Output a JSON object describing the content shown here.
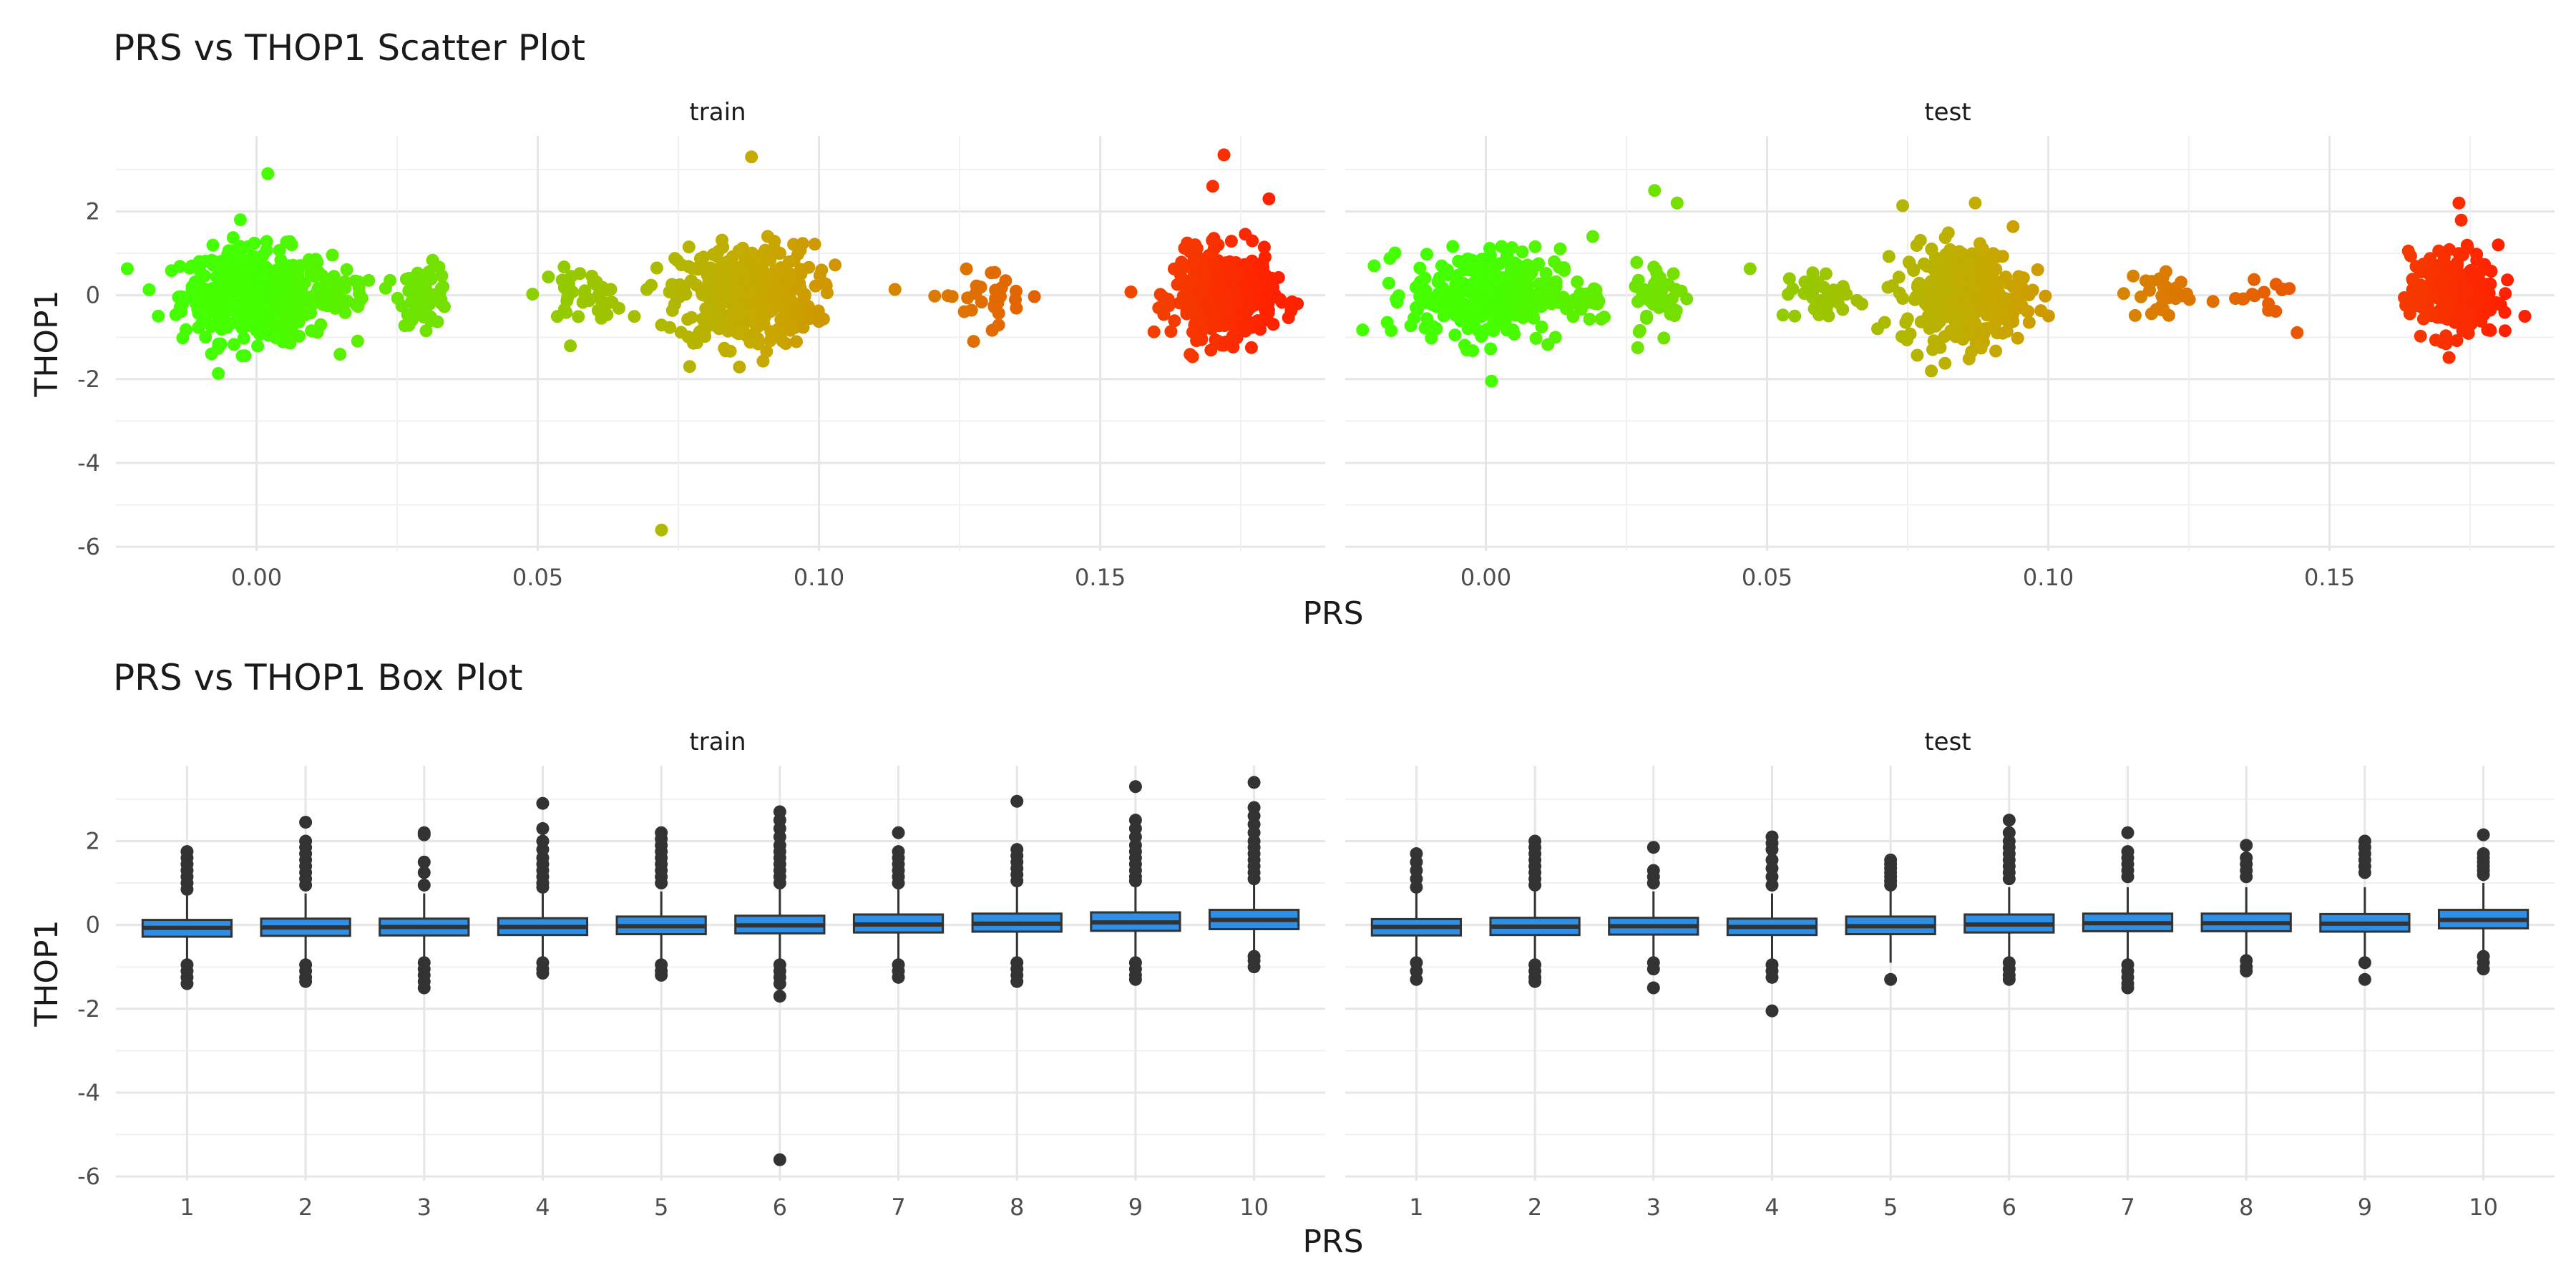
{
  "chart_data": [
    {
      "type": "scatter",
      "title": "PRS vs THOP1 Scatter Plot",
      "xlabel": "PRS",
      "ylabel": "THOP1",
      "facets": [
        "train",
        "test"
      ],
      "xlim": [
        -0.025,
        0.19
      ],
      "ylim": [
        -6.1,
        3.8
      ],
      "x_ticks": [
        0.0,
        0.05,
        0.1,
        0.15
      ],
      "x_tick_labels": [
        "0.00",
        "0.05",
        "0.10",
        "0.15"
      ],
      "y_ticks": [
        -6,
        -4,
        -2,
        0,
        2
      ],
      "y_tick_labels": [
        "-6",
        "-4",
        "-2",
        "0",
        "2"
      ],
      "grid": true,
      "color_scale": {
        "low": "#44ff00",
        "mid": "#c8a800",
        "high": "#ff2200",
        "domain": [
          0.0,
          0.18
        ]
      },
      "clusters": {
        "train": [
          {
            "x_center": 0.0,
            "x_spread": 0.012,
            "y_spread": 0.55,
            "n": 420
          },
          {
            "x_center": 0.015,
            "x_spread": 0.006,
            "y_spread": 0.25,
            "n": 40
          },
          {
            "x_center": 0.03,
            "x_spread": 0.004,
            "y_spread": 0.35,
            "n": 60
          },
          {
            "x_center": 0.058,
            "x_spread": 0.007,
            "y_spread": 0.3,
            "n": 40
          },
          {
            "x_center": 0.087,
            "x_spread": 0.011,
            "y_spread": 0.6,
            "n": 420
          },
          {
            "x_center": 0.13,
            "x_spread": 0.01,
            "y_spread": 0.35,
            "n": 30
          },
          {
            "x_center": 0.172,
            "x_spread": 0.008,
            "y_spread": 0.5,
            "n": 400
          }
        ],
        "test": [
          {
            "x_center": 0.0,
            "x_spread": 0.012,
            "y_spread": 0.55,
            "n": 300
          },
          {
            "x_center": 0.018,
            "x_spread": 0.004,
            "y_spread": 0.3,
            "n": 20
          },
          {
            "x_center": 0.031,
            "x_spread": 0.004,
            "y_spread": 0.4,
            "n": 50
          },
          {
            "x_center": 0.06,
            "x_spread": 0.007,
            "y_spread": 0.3,
            "n": 40
          },
          {
            "x_center": 0.085,
            "x_spread": 0.01,
            "y_spread": 0.6,
            "n": 320
          },
          {
            "x_center": 0.12,
            "x_spread": 0.006,
            "y_spread": 0.35,
            "n": 30
          },
          {
            "x_center": 0.138,
            "x_spread": 0.005,
            "y_spread": 0.35,
            "n": 15
          },
          {
            "x_center": 0.172,
            "x_spread": 0.007,
            "y_spread": 0.5,
            "n": 260
          }
        ]
      },
      "notable_points": {
        "train": [
          {
            "x": 0.002,
            "y": 2.9
          },
          {
            "x": 0.072,
            "y": -5.6
          },
          {
            "x": 0.088,
            "y": 3.3
          },
          {
            "x": 0.172,
            "y": 3.35
          },
          {
            "x": 0.18,
            "y": 2.3
          },
          {
            "x": 0.17,
            "y": 2.6
          },
          {
            "x": 0.077,
            "y": -1.7
          },
          {
            "x": -0.008,
            "y": -1.4
          }
        ],
        "test": [
          {
            "x": 0.03,
            "y": 2.5
          },
          {
            "x": 0.034,
            "y": 2.2
          },
          {
            "x": 0.001,
            "y": -2.05
          },
          {
            "x": 0.087,
            "y": 2.2
          },
          {
            "x": 0.173,
            "y": 2.2
          },
          {
            "x": 0.18,
            "y": 1.2
          },
          {
            "x": 0.019,
            "y": 1.4
          },
          {
            "x": 0.027,
            "y": -1.25
          }
        ]
      }
    },
    {
      "type": "box",
      "title": "PRS vs THOP1 Box Plot",
      "xlabel": "PRS",
      "ylabel": "THOP1",
      "facets": [
        "train",
        "test"
      ],
      "categories": [
        "1",
        "2",
        "3",
        "4",
        "5",
        "6",
        "7",
        "8",
        "9",
        "10"
      ],
      "ylim": [
        -6.1,
        3.8
      ],
      "y_ticks": [
        -6,
        -4,
        -2,
        0,
        2
      ],
      "y_tick_labels": [
        "-6",
        "-4",
        "-2",
        "0",
        "2"
      ],
      "box_color": "#2e8fe6",
      "grid": true,
      "series": {
        "train": [
          {
            "q1": -0.28,
            "median": -0.07,
            "q3": 0.12,
            "whisker_low": -0.85,
            "whisker_high": 0.7,
            "outliers": [
              1.75,
              1.6,
              1.45,
              1.3,
              1.15,
              1.0,
              0.85,
              -0.95,
              -1.1,
              -1.25,
              -1.4
            ]
          },
          {
            "q1": -0.26,
            "median": -0.06,
            "q3": 0.15,
            "whisker_low": -0.85,
            "whisker_high": 0.75,
            "outliers": [
              2.45,
              2.0,
              1.85,
              1.7,
              1.55,
              1.4,
              1.25,
              1.1,
              0.95,
              -0.95,
              -1.1,
              -1.25,
              -1.35
            ]
          },
          {
            "q1": -0.25,
            "median": -0.05,
            "q3": 0.15,
            "whisker_low": -0.8,
            "whisker_high": 0.75,
            "outliers": [
              2.2,
              2.15,
              1.5,
              1.25,
              0.95,
              -0.9,
              -1.05,
              -1.2,
              -1.35,
              -1.5
            ]
          },
          {
            "q1": -0.24,
            "median": -0.05,
            "q3": 0.16,
            "whisker_low": -0.8,
            "whisker_high": 0.75,
            "outliers": [
              2.9,
              2.3,
              2.0,
              1.8,
              1.6,
              1.45,
              1.3,
              1.15,
              1.0,
              0.9,
              -0.9,
              -1.05,
              -1.15
            ]
          },
          {
            "q1": -0.22,
            "median": -0.03,
            "q3": 0.2,
            "whisker_low": -0.8,
            "whisker_high": 0.8,
            "outliers": [
              2.2,
              2.05,
              1.9,
              1.75,
              1.6,
              1.45,
              1.3,
              1.15,
              1.0,
              -0.95,
              -1.1,
              -1.2
            ]
          },
          {
            "q1": -0.2,
            "median": -0.01,
            "q3": 0.22,
            "whisker_low": -0.8,
            "whisker_high": 0.85,
            "outliers": [
              2.7,
              2.5,
              2.3,
              2.1,
              1.9,
              1.75,
              1.6,
              1.45,
              1.3,
              1.15,
              1.0,
              -0.95,
              -1.1,
              -1.25,
              -1.4,
              -1.7,
              -5.6
            ]
          },
          {
            "q1": -0.18,
            "median": 0.01,
            "q3": 0.25,
            "whisker_low": -0.8,
            "whisker_high": 0.85,
            "outliers": [
              2.2,
              1.75,
              1.6,
              1.45,
              1.3,
              1.15,
              1.0,
              -0.95,
              -1.1,
              -1.25
            ]
          },
          {
            "q1": -0.16,
            "median": 0.03,
            "q3": 0.27,
            "whisker_low": -0.8,
            "whisker_high": 0.9,
            "outliers": [
              2.95,
              1.8,
              1.65,
              1.5,
              1.35,
              1.2,
              1.05,
              -0.9,
              -1.05,
              -1.2,
              -1.35
            ]
          },
          {
            "q1": -0.14,
            "median": 0.06,
            "q3": 0.3,
            "whisker_low": -0.75,
            "whisker_high": 0.95,
            "outliers": [
              3.3,
              2.5,
              2.3,
              2.1,
              1.9,
              1.75,
              1.6,
              1.45,
              1.3,
              1.15,
              1.05,
              -0.9,
              -1.05,
              -1.2,
              -1.3
            ]
          },
          {
            "q1": -0.1,
            "median": 0.12,
            "q3": 0.36,
            "whisker_low": -0.65,
            "whisker_high": 1.0,
            "outliers": [
              3.4,
              2.8,
              2.6,
              2.4,
              2.2,
              2.0,
              1.85,
              1.7,
              1.55,
              1.4,
              1.25,
              1.1,
              -0.75,
              -0.85,
              -1.0
            ]
          }
        ],
        "test": [
          {
            "q1": -0.25,
            "median": -0.05,
            "q3": 0.14,
            "whisker_low": -0.8,
            "whisker_high": 0.75,
            "outliers": [
              1.7,
              1.5,
              1.3,
              1.1,
              0.9,
              -0.9,
              -1.1,
              -1.3
            ]
          },
          {
            "q1": -0.24,
            "median": -0.04,
            "q3": 0.17,
            "whisker_low": -0.8,
            "whisker_high": 0.8,
            "outliers": [
              2.0,
              1.85,
              1.7,
              1.55,
              1.4,
              1.25,
              1.1,
              0.95,
              -0.95,
              -1.1,
              -1.25,
              -1.35
            ]
          },
          {
            "q1": -0.23,
            "median": -0.03,
            "q3": 0.17,
            "whisker_low": -0.8,
            "whisker_high": 0.8,
            "outliers": [
              1.85,
              1.3,
              1.15,
              1.0,
              -0.9,
              -1.05,
              -1.5
            ]
          },
          {
            "q1": -0.24,
            "median": -0.05,
            "q3": 0.15,
            "whisker_low": -0.8,
            "whisker_high": 0.75,
            "outliers": [
              2.1,
              1.95,
              1.8,
              1.55,
              1.35,
              1.15,
              0.95,
              -0.95,
              -1.1,
              -1.25,
              -2.05
            ]
          },
          {
            "q1": -0.22,
            "median": -0.03,
            "q3": 0.2,
            "whisker_low": -0.9,
            "whisker_high": 0.85,
            "outliers": [
              1.55,
              1.45,
              1.35,
              1.25,
              1.15,
              1.05,
              0.95,
              -1.3
            ]
          },
          {
            "q1": -0.18,
            "median": 0.01,
            "q3": 0.25,
            "whisker_low": -0.8,
            "whisker_high": 0.9,
            "outliers": [
              2.5,
              2.2,
              2.0,
              1.85,
              1.7,
              1.55,
              1.4,
              1.25,
              1.1,
              -0.9,
              -1.05,
              -1.2,
              -1.3
            ]
          },
          {
            "q1": -0.15,
            "median": 0.04,
            "q3": 0.27,
            "whisker_low": -0.8,
            "whisker_high": 0.9,
            "outliers": [
              2.2,
              1.75,
              1.6,
              1.45,
              1.3,
              1.15,
              -0.95,
              -1.1,
              -1.25,
              -1.4,
              -1.5
            ]
          },
          {
            "q1": -0.15,
            "median": 0.04,
            "q3": 0.27,
            "whisker_low": -0.75,
            "whisker_high": 0.9,
            "outliers": [
              1.9,
              1.6,
              1.45,
              1.3,
              1.15,
              -0.85,
              -1.0,
              -1.1
            ]
          },
          {
            "q1": -0.16,
            "median": 0.03,
            "q3": 0.26,
            "whisker_low": -0.75,
            "whisker_high": 0.9,
            "outliers": [
              2.0,
              1.85,
              1.7,
              1.55,
              1.4,
              1.25,
              -0.9,
              -1.3
            ]
          },
          {
            "q1": -0.08,
            "median": 0.12,
            "q3": 0.36,
            "whisker_low": -0.65,
            "whisker_high": 1.0,
            "outliers": [
              2.15,
              1.7,
              1.6,
              1.5,
              1.4,
              1.3,
              1.2,
              -0.75,
              -0.9,
              -1.05
            ]
          }
        ]
      }
    }
  ]
}
